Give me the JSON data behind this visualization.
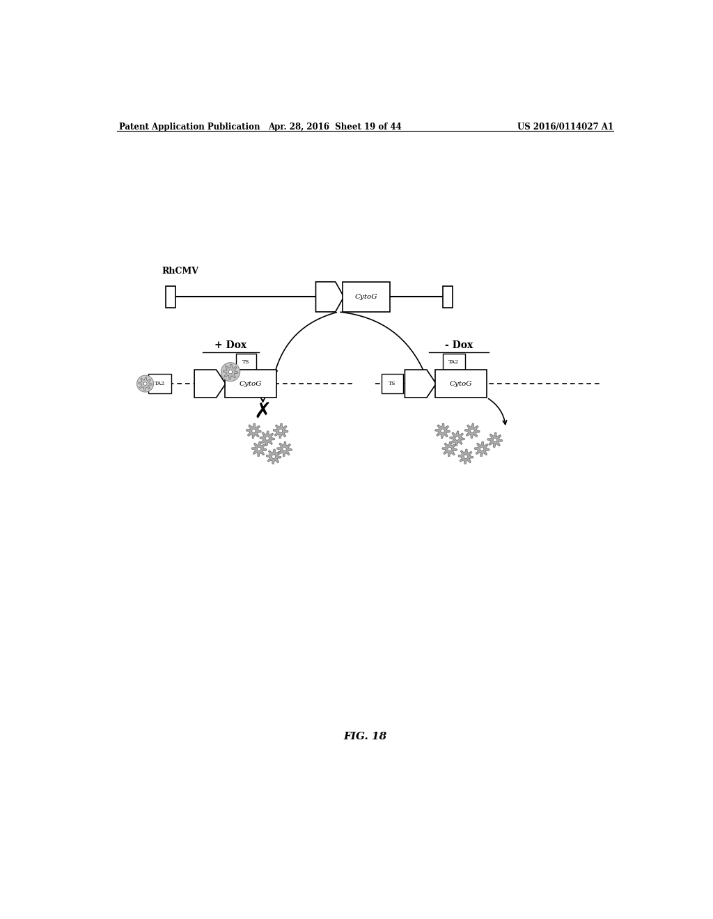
{
  "background_color": "#ffffff",
  "header_left": "Patent Application Publication",
  "header_mid": "Apr. 28, 2016  Sheet 19 of 44",
  "header_right": "US 2016/0114027 A1",
  "footer": "FIG. 18",
  "rhcmv_label": "RhCMV",
  "plus_dox_label": "+ Dox",
  "minus_dox_label": "- Dox"
}
